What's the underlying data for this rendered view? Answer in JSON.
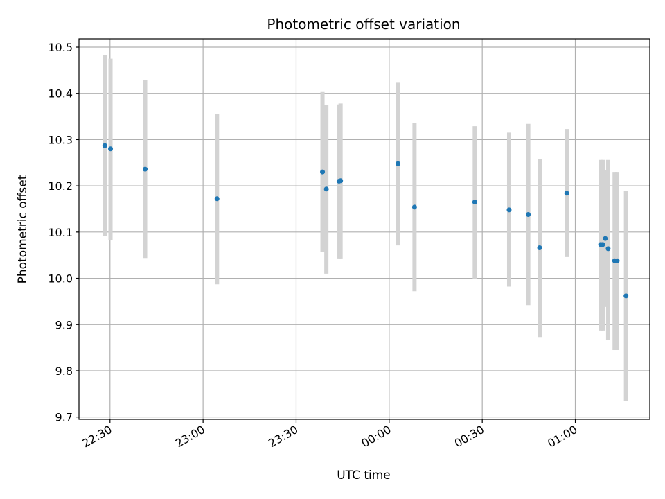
{
  "chart_data": {
    "type": "scatter",
    "title": "Photometric offset variation",
    "xlabel": "UTC time",
    "ylabel": "Photometric offset",
    "x_ticks": [
      "22:30",
      "23:00",
      "23:30",
      "00:00",
      "00:30",
      "01:00"
    ],
    "y_ticks": [
      "9.7",
      "9.8",
      "9.9",
      "10.0",
      "10.1",
      "10.2",
      "10.3",
      "10.4",
      "10.5"
    ],
    "xlim": [
      "22:20",
      "01:24"
    ],
    "ylim": [
      9.695,
      10.518
    ],
    "grid": true,
    "error_bar_color": "#d3d3d3",
    "marker_color": "#1f77b4",
    "points": [
      {
        "x": "22:28:20",
        "y": 10.287,
        "ylow": 10.092,
        "yhigh": 10.482
      },
      {
        "x": "22:30:10",
        "y": 10.28,
        "ylow": 10.083,
        "yhigh": 10.475
      },
      {
        "x": "22:41:20",
        "y": 10.236,
        "ylow": 10.044,
        "yhigh": 10.428
      },
      {
        "x": "23:04:30",
        "y": 10.172,
        "ylow": 9.987,
        "yhigh": 10.356
      },
      {
        "x": "23:38:30",
        "y": 10.23,
        "ylow": 10.057,
        "yhigh": 10.403
      },
      {
        "x": "23:39:45",
        "y": 10.193,
        "ylow": 10.01,
        "yhigh": 10.375
      },
      {
        "x": "23:43:50",
        "y": 10.21,
        "ylow": 10.043,
        "yhigh": 10.376
      },
      {
        "x": "23:44:20",
        "y": 10.211,
        "ylow": 10.043,
        "yhigh": 10.378
      },
      {
        "x": "00:02:50",
        "y": 10.248,
        "ylow": 10.071,
        "yhigh": 10.423
      },
      {
        "x": "00:08:10",
        "y": 10.154,
        "ylow": 9.972,
        "yhigh": 10.336
      },
      {
        "x": "00:27:35",
        "y": 10.165,
        "ylow": 9.999,
        "yhigh": 10.329
      },
      {
        "x": "00:38:40",
        "y": 10.148,
        "ylow": 9.982,
        "yhigh": 10.315
      },
      {
        "x": "00:44:50",
        "y": 10.138,
        "ylow": 9.942,
        "yhigh": 10.334
      },
      {
        "x": "00:48:30",
        "y": 10.066,
        "ylow": 9.873,
        "yhigh": 10.258
      },
      {
        "x": "00:57:15",
        "y": 10.184,
        "ylow": 10.046,
        "yhigh": 10.323
      },
      {
        "x": "01:08:10",
        "y": 10.073,
        "ylow": 9.887,
        "yhigh": 10.256
      },
      {
        "x": "01:08:50",
        "y": 10.073,
        "ylow": 9.887,
        "yhigh": 10.256
      },
      {
        "x": "01:09:40",
        "y": 10.086,
        "ylow": 9.938,
        "yhigh": 10.234
      },
      {
        "x": "01:10:35",
        "y": 10.064,
        "ylow": 9.867,
        "yhigh": 10.256
      },
      {
        "x": "01:12:40",
        "y": 10.038,
        "ylow": 9.845,
        "yhigh": 10.23
      },
      {
        "x": "01:13:30",
        "y": 10.038,
        "ylow": 9.845,
        "yhigh": 10.23
      },
      {
        "x": "01:16:20",
        "y": 9.962,
        "ylow": 9.735,
        "yhigh": 10.189
      }
    ]
  }
}
